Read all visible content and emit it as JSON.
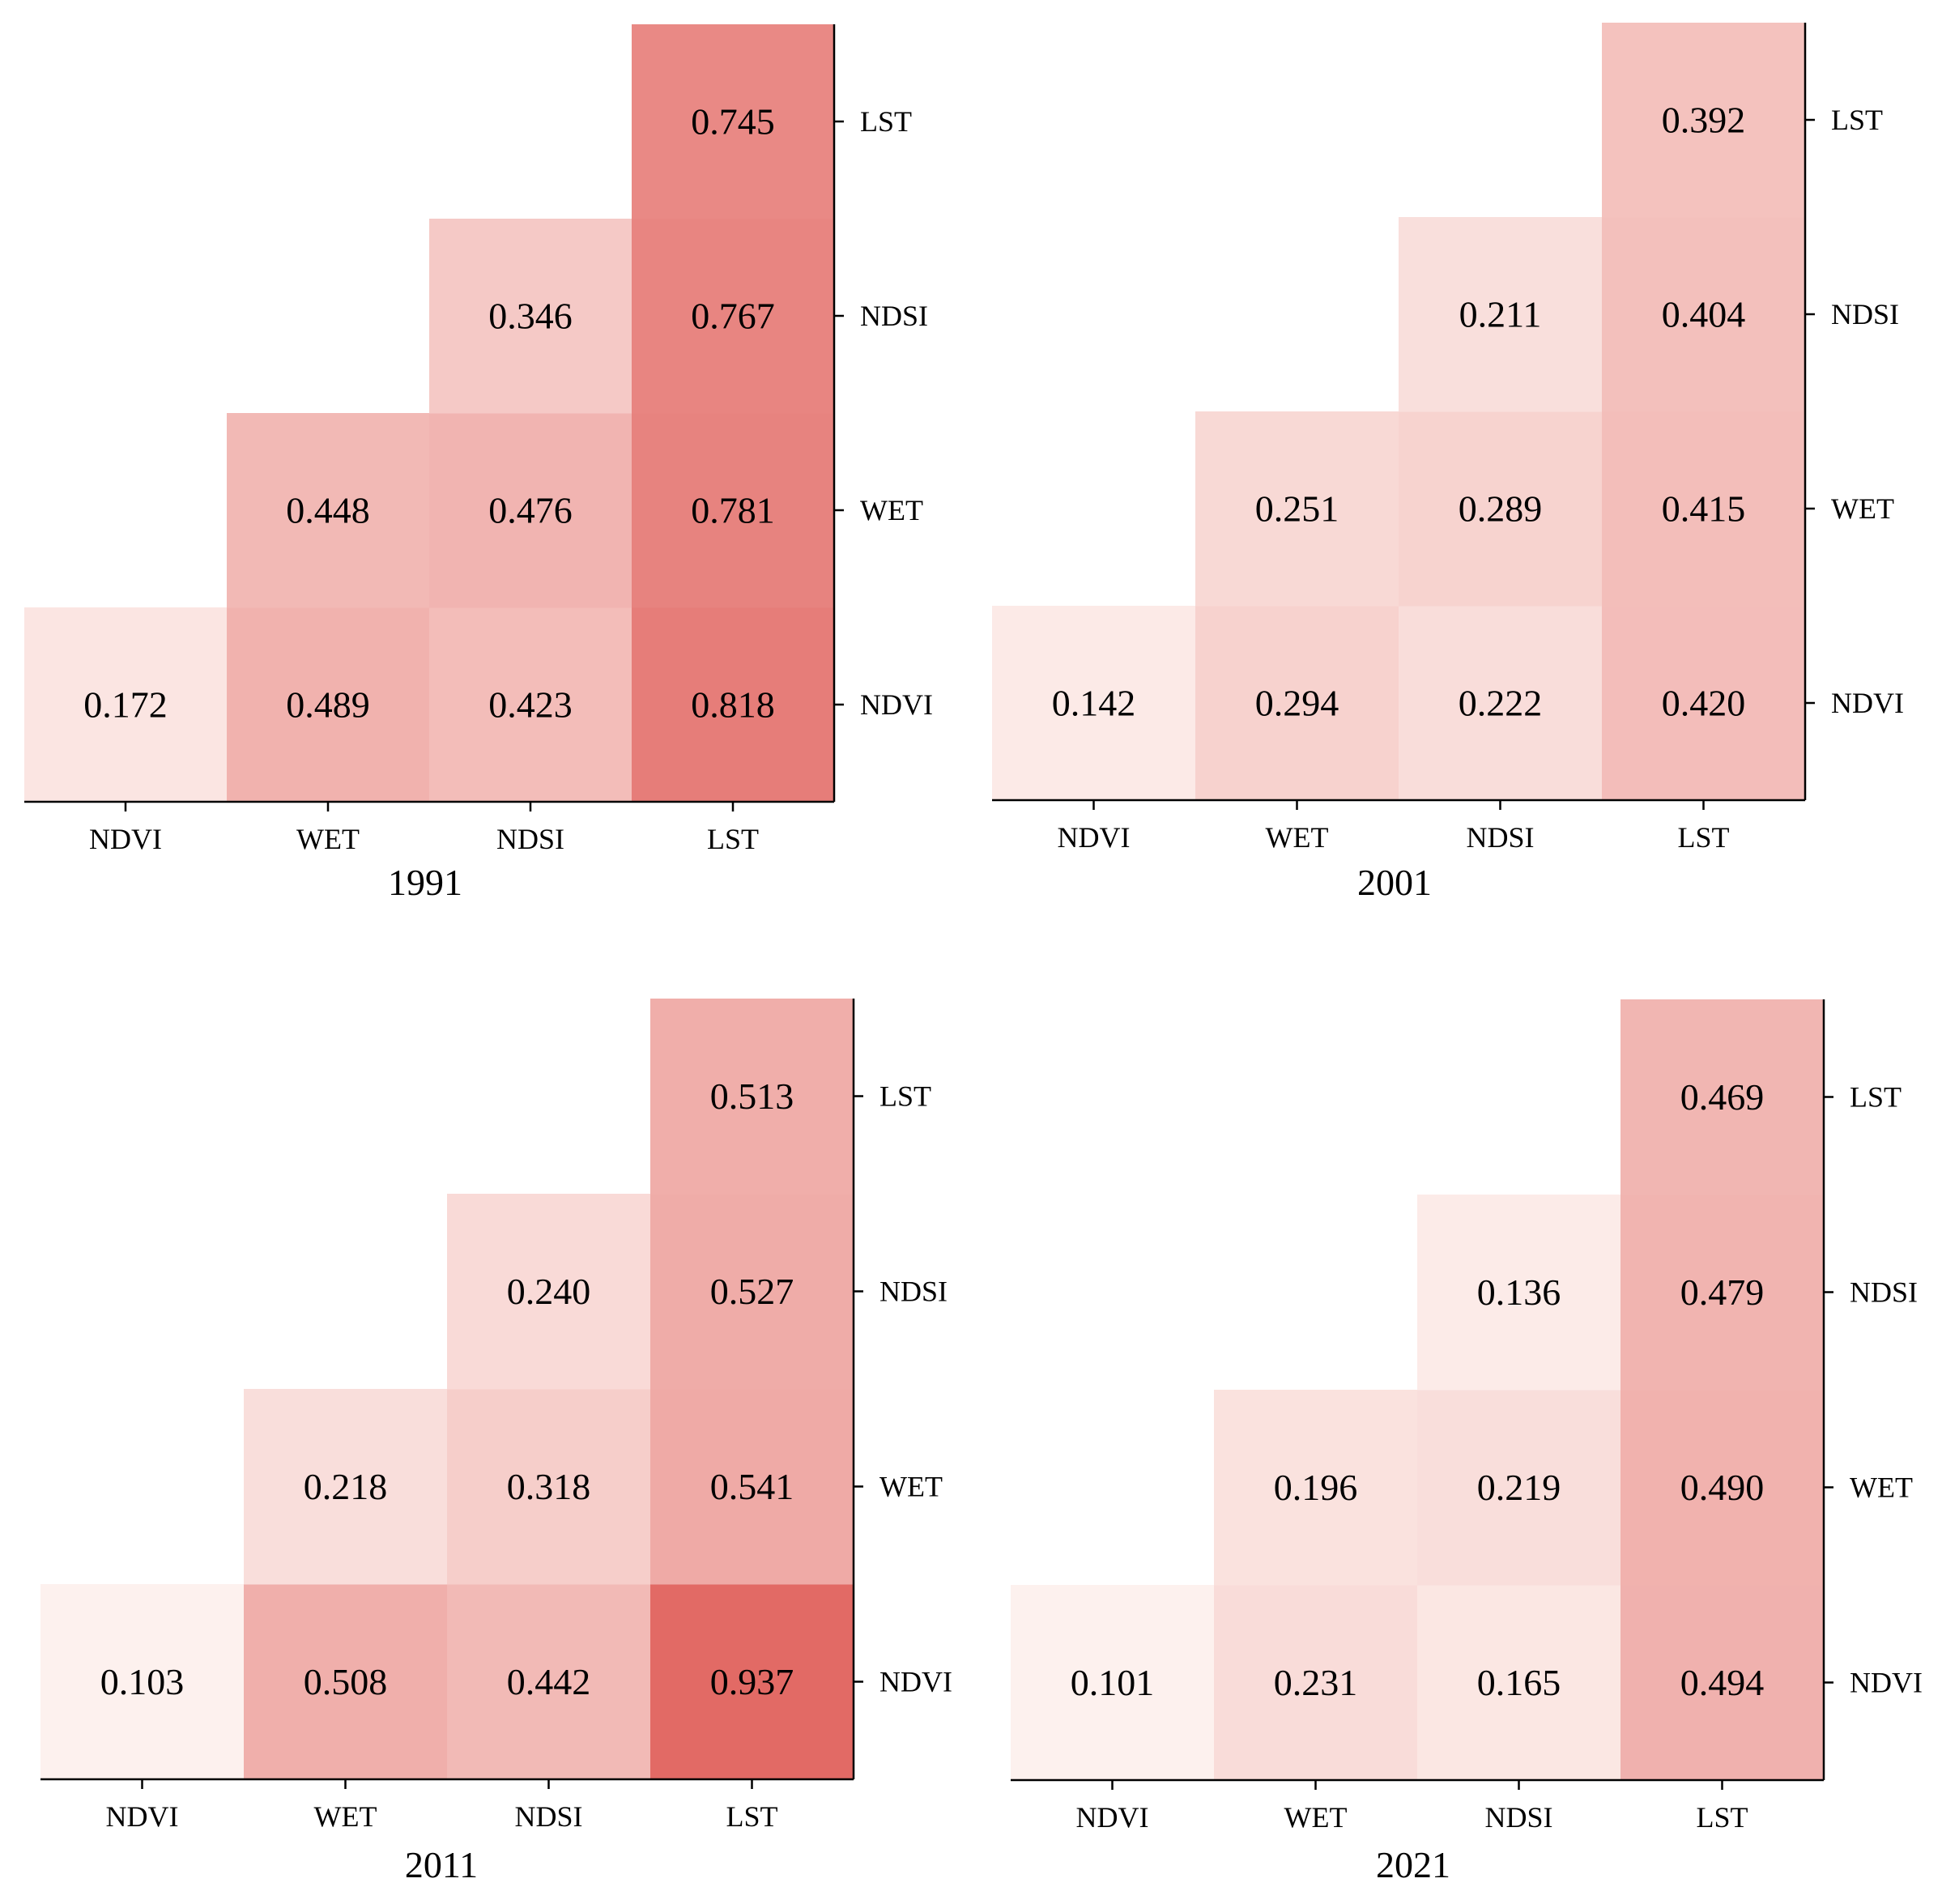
{
  "chart_data": [
    {
      "type": "heatmap",
      "title": "1991",
      "x_labels": [
        "NDVI",
        "WET",
        "NDSI",
        "LST"
      ],
      "y_labels_bottom_to_top": [
        "NDVI",
        "WET",
        "NDSI",
        "LST"
      ],
      "cells": [
        {
          "x": "NDVI",
          "y": "NDVI",
          "value": "0.172"
        },
        {
          "x": "WET",
          "y": "NDVI",
          "value": "0.489"
        },
        {
          "x": "NDSI",
          "y": "NDVI",
          "value": "0.423"
        },
        {
          "x": "LST",
          "y": "NDVI",
          "value": "0.818"
        },
        {
          "x": "WET",
          "y": "WET",
          "value": "0.448"
        },
        {
          "x": "NDSI",
          "y": "WET",
          "value": "0.476"
        },
        {
          "x": "LST",
          "y": "WET",
          "value": "0.781"
        },
        {
          "x": "NDSI",
          "y": "NDSI",
          "value": "0.346"
        },
        {
          "x": "LST",
          "y": "NDSI",
          "value": "0.767"
        },
        {
          "x": "LST",
          "y": "LST",
          "value": "0.745"
        }
      ]
    },
    {
      "type": "heatmap",
      "title": "2001",
      "x_labels": [
        "NDVI",
        "WET",
        "NDSI",
        "LST"
      ],
      "y_labels_bottom_to_top": [
        "NDVI",
        "WET",
        "NDSI",
        "LST"
      ],
      "cells": [
        {
          "x": "NDVI",
          "y": "NDVI",
          "value": "0.142"
        },
        {
          "x": "WET",
          "y": "NDVI",
          "value": "0.294"
        },
        {
          "x": "NDSI",
          "y": "NDVI",
          "value": "0.222"
        },
        {
          "x": "LST",
          "y": "NDVI",
          "value": "0.420"
        },
        {
          "x": "WET",
          "y": "WET",
          "value": "0.251"
        },
        {
          "x": "NDSI",
          "y": "WET",
          "value": "0.289"
        },
        {
          "x": "LST",
          "y": "WET",
          "value": "0.415"
        },
        {
          "x": "NDSI",
          "y": "NDSI",
          "value": "0.211"
        },
        {
          "x": "LST",
          "y": "NDSI",
          "value": "0.404"
        },
        {
          "x": "LST",
          "y": "LST",
          "value": "0.392"
        }
      ]
    },
    {
      "type": "heatmap",
      "title": "2011",
      "x_labels": [
        "NDVI",
        "WET",
        "NDSI",
        "LST"
      ],
      "y_labels_bottom_to_top": [
        "NDVI",
        "WET",
        "NDSI",
        "LST"
      ],
      "cells": [
        {
          "x": "NDVI",
          "y": "NDVI",
          "value": "0.103"
        },
        {
          "x": "WET",
          "y": "NDVI",
          "value": "0.508"
        },
        {
          "x": "NDSI",
          "y": "NDVI",
          "value": "0.442"
        },
        {
          "x": "LST",
          "y": "NDVI",
          "value": "0.937"
        },
        {
          "x": "WET",
          "y": "WET",
          "value": "0.218"
        },
        {
          "x": "NDSI",
          "y": "WET",
          "value": "0.318"
        },
        {
          "x": "LST",
          "y": "WET",
          "value": "0.541"
        },
        {
          "x": "NDSI",
          "y": "NDSI",
          "value": "0.240"
        },
        {
          "x": "LST",
          "y": "NDSI",
          "value": "0.527"
        },
        {
          "x": "LST",
          "y": "LST",
          "value": "0.513"
        }
      ]
    },
    {
      "type": "heatmap",
      "title": "2021",
      "x_labels": [
        "NDVI",
        "WET",
        "NDSI",
        "LST"
      ],
      "y_labels_bottom_to_top": [
        "NDVI",
        "WET",
        "NDSI",
        "LST"
      ],
      "cells": [
        {
          "x": "NDVI",
          "y": "NDVI",
          "value": "0.101"
        },
        {
          "x": "WET",
          "y": "NDVI",
          "value": "0.231"
        },
        {
          "x": "NDSI",
          "y": "NDVI",
          "value": "0.165"
        },
        {
          "x": "LST",
          "y": "NDVI",
          "value": "0.494"
        },
        {
          "x": "WET",
          "y": "WET",
          "value": "0.196"
        },
        {
          "x": "NDSI",
          "y": "WET",
          "value": "0.219"
        },
        {
          "x": "LST",
          "y": "WET",
          "value": "0.490"
        },
        {
          "x": "NDSI",
          "y": "NDSI",
          "value": "0.136"
        },
        {
          "x": "LST",
          "y": "NDSI",
          "value": "0.479"
        },
        {
          "x": "LST",
          "y": "LST",
          "value": "0.469"
        }
      ]
    }
  ],
  "colors": {
    "low": "#fdf1ee",
    "high": "#e26863",
    "axis": "#000000",
    "text": "#000000"
  }
}
